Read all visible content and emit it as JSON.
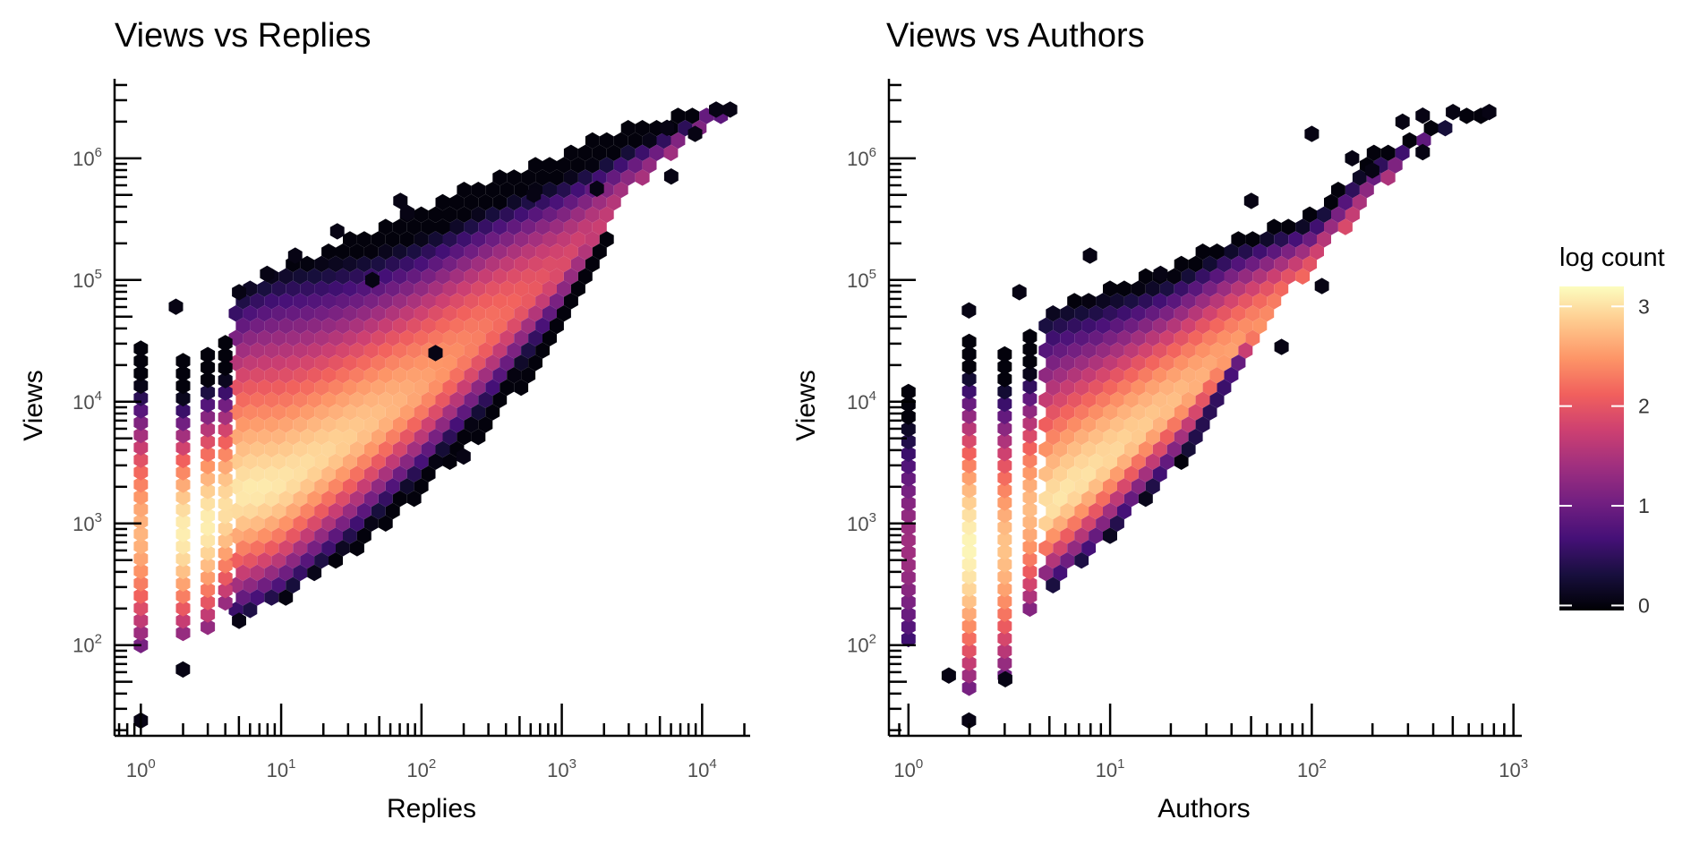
{
  "chart_data": [
    {
      "type": "heatmap",
      "subtype": "hexbin",
      "title": "Views vs Replies",
      "xlabel": "Replies",
      "ylabel": "Views",
      "x_scale": "log10",
      "y_scale": "log10",
      "xlim": [
        0.65,
        22000
      ],
      "ylim": [
        18,
        4500000
      ],
      "x_ticks": [
        {
          "base": "10",
          "exp": "0",
          "value": 1
        },
        {
          "base": "10",
          "exp": "1",
          "value": 10
        },
        {
          "base": "10",
          "exp": "2",
          "value": 100
        },
        {
          "base": "10",
          "exp": "3",
          "value": 1000
        },
        {
          "base": "10",
          "exp": "4",
          "value": 10000
        }
      ],
      "y_ticks": [
        {
          "base": "10",
          "exp": "2",
          "value": 100
        },
        {
          "base": "10",
          "exp": "3",
          "value": 1000
        },
        {
          "base": "10",
          "exp": "4",
          "value": 10000
        },
        {
          "base": "10",
          "exp": "5",
          "value": 100000
        },
        {
          "base": "10",
          "exp": "6",
          "value": 1000000
        }
      ],
      "density_model": {
        "center_line": [
          [
            0,
            3.0
          ],
          [
            1,
            3.35
          ],
          [
            2,
            4.1
          ],
          [
            3,
            5.1
          ],
          [
            4,
            6.3
          ]
        ],
        "upper_edge": [
          [
            0,
            4.55
          ],
          [
            0.5,
            4.75
          ],
          [
            1,
            5.1
          ],
          [
            1.5,
            5.35
          ],
          [
            2,
            5.6
          ],
          [
            2.5,
            5.85
          ],
          [
            3,
            6.05
          ],
          [
            3.5,
            6.3
          ],
          [
            4.15,
            6.4
          ]
        ],
        "lower_edge": [
          [
            0,
            1.75
          ],
          [
            0.5,
            2.1
          ],
          [
            1,
            2.35
          ],
          [
            1.5,
            2.75
          ],
          [
            2,
            3.25
          ],
          [
            2.5,
            3.8
          ],
          [
            3,
            4.55
          ],
          [
            3.5,
            5.75
          ],
          [
            4.15,
            6.35
          ]
        ],
        "peak": 3.15
      },
      "column_strips": [
        {
          "x": 1,
          "ymin": 2.0,
          "ymax": 4.45,
          "peak": 2.7
        },
        {
          "x": 2,
          "ymin": 2.1,
          "ymax": 4.35,
          "peak": 3.1
        },
        {
          "x": 3,
          "ymin": 2.15,
          "ymax": 4.45,
          "peak": 3.1
        },
        {
          "x": 4,
          "ymin": 2.35,
          "ymax": 4.5,
          "peak": 3.0
        }
      ],
      "outliers": [
        [
          0,
          1.38
        ],
        [
          0.3,
          1.8
        ],
        [
          0.7,
          2.2
        ],
        [
          0.7,
          4.9
        ],
        [
          1.1,
          5.2
        ],
        [
          1.4,
          5.4
        ],
        [
          1.65,
          5.0
        ],
        [
          1.85,
          5.65
        ],
        [
          1.9,
          5.55
        ],
        [
          2.1,
          4.4
        ],
        [
          2.3,
          3.55
        ],
        [
          2.8,
          5.7
        ],
        [
          3.25,
          5.75
        ],
        [
          3.75,
          6.25
        ],
        [
          3.78,
          5.85
        ],
        [
          3.95,
          6.2
        ],
        [
          4.1,
          6.4
        ],
        [
          4.2,
          6.4
        ],
        [
          0.25,
          4.78
        ],
        [
          0.9,
          5.05
        ]
      ],
      "colorscale": "magma",
      "gridlines": false
    },
    {
      "type": "heatmap",
      "subtype": "hexbin",
      "title": "Views vs Authors",
      "xlabel": "Authors",
      "ylabel": "Views",
      "x_scale": "log10",
      "y_scale": "log10",
      "xlim": [
        0.8,
        1100
      ],
      "ylim": [
        18,
        4500000
      ],
      "x_ticks": [
        {
          "base": "10",
          "exp": "0",
          "value": 1
        },
        {
          "base": "10",
          "exp": "1",
          "value": 10
        },
        {
          "base": "10",
          "exp": "2",
          "value": 100
        },
        {
          "base": "10",
          "exp": "3",
          "value": 1000
        }
      ],
      "y_ticks": [
        {
          "base": "10",
          "exp": "2",
          "value": 100
        },
        {
          "base": "10",
          "exp": "3",
          "value": 1000
        },
        {
          "base": "10",
          "exp": "4",
          "value": 10000
        },
        {
          "base": "10",
          "exp": "5",
          "value": 100000
        },
        {
          "base": "10",
          "exp": "6",
          "value": 1000000
        }
      ],
      "density_model": {
        "center_line": [
          [
            0.6,
            3.0
          ],
          [
            1,
            3.55
          ],
          [
            1.5,
            4.25
          ],
          [
            2,
            5.0
          ],
          [
            2.6,
            6.1
          ]
        ],
        "upper_edge": [
          [
            0.6,
            4.7
          ],
          [
            1,
            4.95
          ],
          [
            1.3,
            5.1
          ],
          [
            1.6,
            5.35
          ],
          [
            2,
            5.55
          ],
          [
            2.3,
            6.05
          ],
          [
            2.6,
            6.3
          ],
          [
            2.9,
            6.4
          ]
        ],
        "lower_edge": [
          [
            0.6,
            2.3
          ],
          [
            0.9,
            2.7
          ],
          [
            1.2,
            3.2
          ],
          [
            1.4,
            3.55
          ],
          [
            1.6,
            4.15
          ],
          [
            1.8,
            4.75
          ],
          [
            2.0,
            5.1
          ],
          [
            2.3,
            5.7
          ],
          [
            2.6,
            6.2
          ],
          [
            2.9,
            6.35
          ]
        ],
        "peak": 2.95
      },
      "column_strips": [
        {
          "x": 1,
          "ymin": 2.05,
          "ymax": 4.15,
          "peak": 1.4
        },
        {
          "x": 2,
          "ymin": 1.65,
          "ymax": 4.55,
          "peak": 3.15
        },
        {
          "x": 3,
          "ymin": 1.75,
          "ymax": 4.45,
          "peak": 2.8
        },
        {
          "x": 4,
          "ymin": 2.3,
          "ymax": 4.55,
          "peak": 2.75
        }
      ],
      "outliers": [
        [
          0.3,
          1.38
        ],
        [
          0.48,
          1.72
        ],
        [
          0.3,
          4.75
        ],
        [
          0.55,
          4.9
        ],
        [
          0.9,
          5.2
        ],
        [
          1.25,
          5.05
        ],
        [
          1.7,
          5.65
        ],
        [
          2.0,
          6.2
        ],
        [
          2.2,
          6.0
        ],
        [
          2.3,
          5.9
        ],
        [
          2.45,
          6.3
        ],
        [
          2.55,
          6.35
        ],
        [
          2.7,
          6.38
        ],
        [
          2.88,
          6.38
        ],
        [
          2.55,
          6.05
        ],
        [
          2.05,
          4.95
        ],
        [
          1.85,
          4.45
        ],
        [
          0.2,
          1.75
        ]
      ],
      "colorscale": "magma",
      "gridlines": false
    }
  ],
  "legend": {
    "title": "log count",
    "ticks": [
      {
        "label": "3",
        "value": 3
      },
      {
        "label": "2",
        "value": 2
      },
      {
        "label": "1",
        "value": 1
      },
      {
        "label": "0",
        "value": 0
      }
    ],
    "range": [
      -0.05,
      3.2
    ],
    "placement": "right",
    "colors": [
      "#000004",
      "#180f3e",
      "#451077",
      "#721f81",
      "#9f2f7f",
      "#cd4071",
      "#f1605d",
      "#fd9567",
      "#fec98d",
      "#fcfdbf"
    ]
  }
}
